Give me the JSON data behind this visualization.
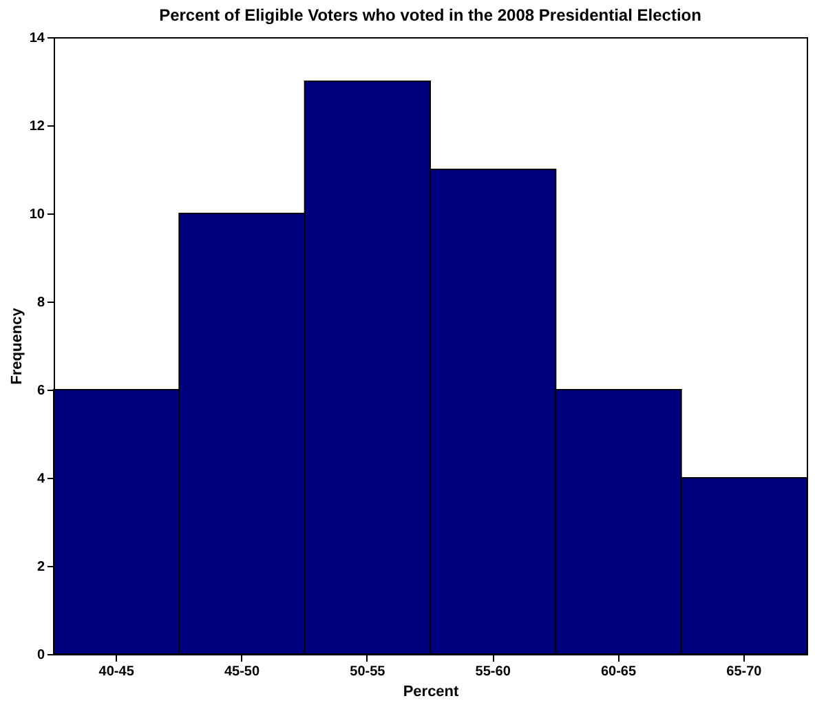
{
  "chart_data": {
    "type": "bar",
    "title": "Percent of Eligible Voters who voted in the 2008 Presidential Election",
    "xlabel": "Percent",
    "ylabel": "Frequency",
    "categories": [
      "40-45",
      "45-50",
      "50-55",
      "55-60",
      "60-65",
      "65-70"
    ],
    "values": [
      6,
      10,
      13,
      11,
      6,
      4
    ],
    "color": "#00007f",
    "ylim": [
      0,
      14
    ],
    "yticks": [
      0,
      2,
      4,
      6,
      8,
      10,
      12,
      14
    ],
    "grid": false
  }
}
